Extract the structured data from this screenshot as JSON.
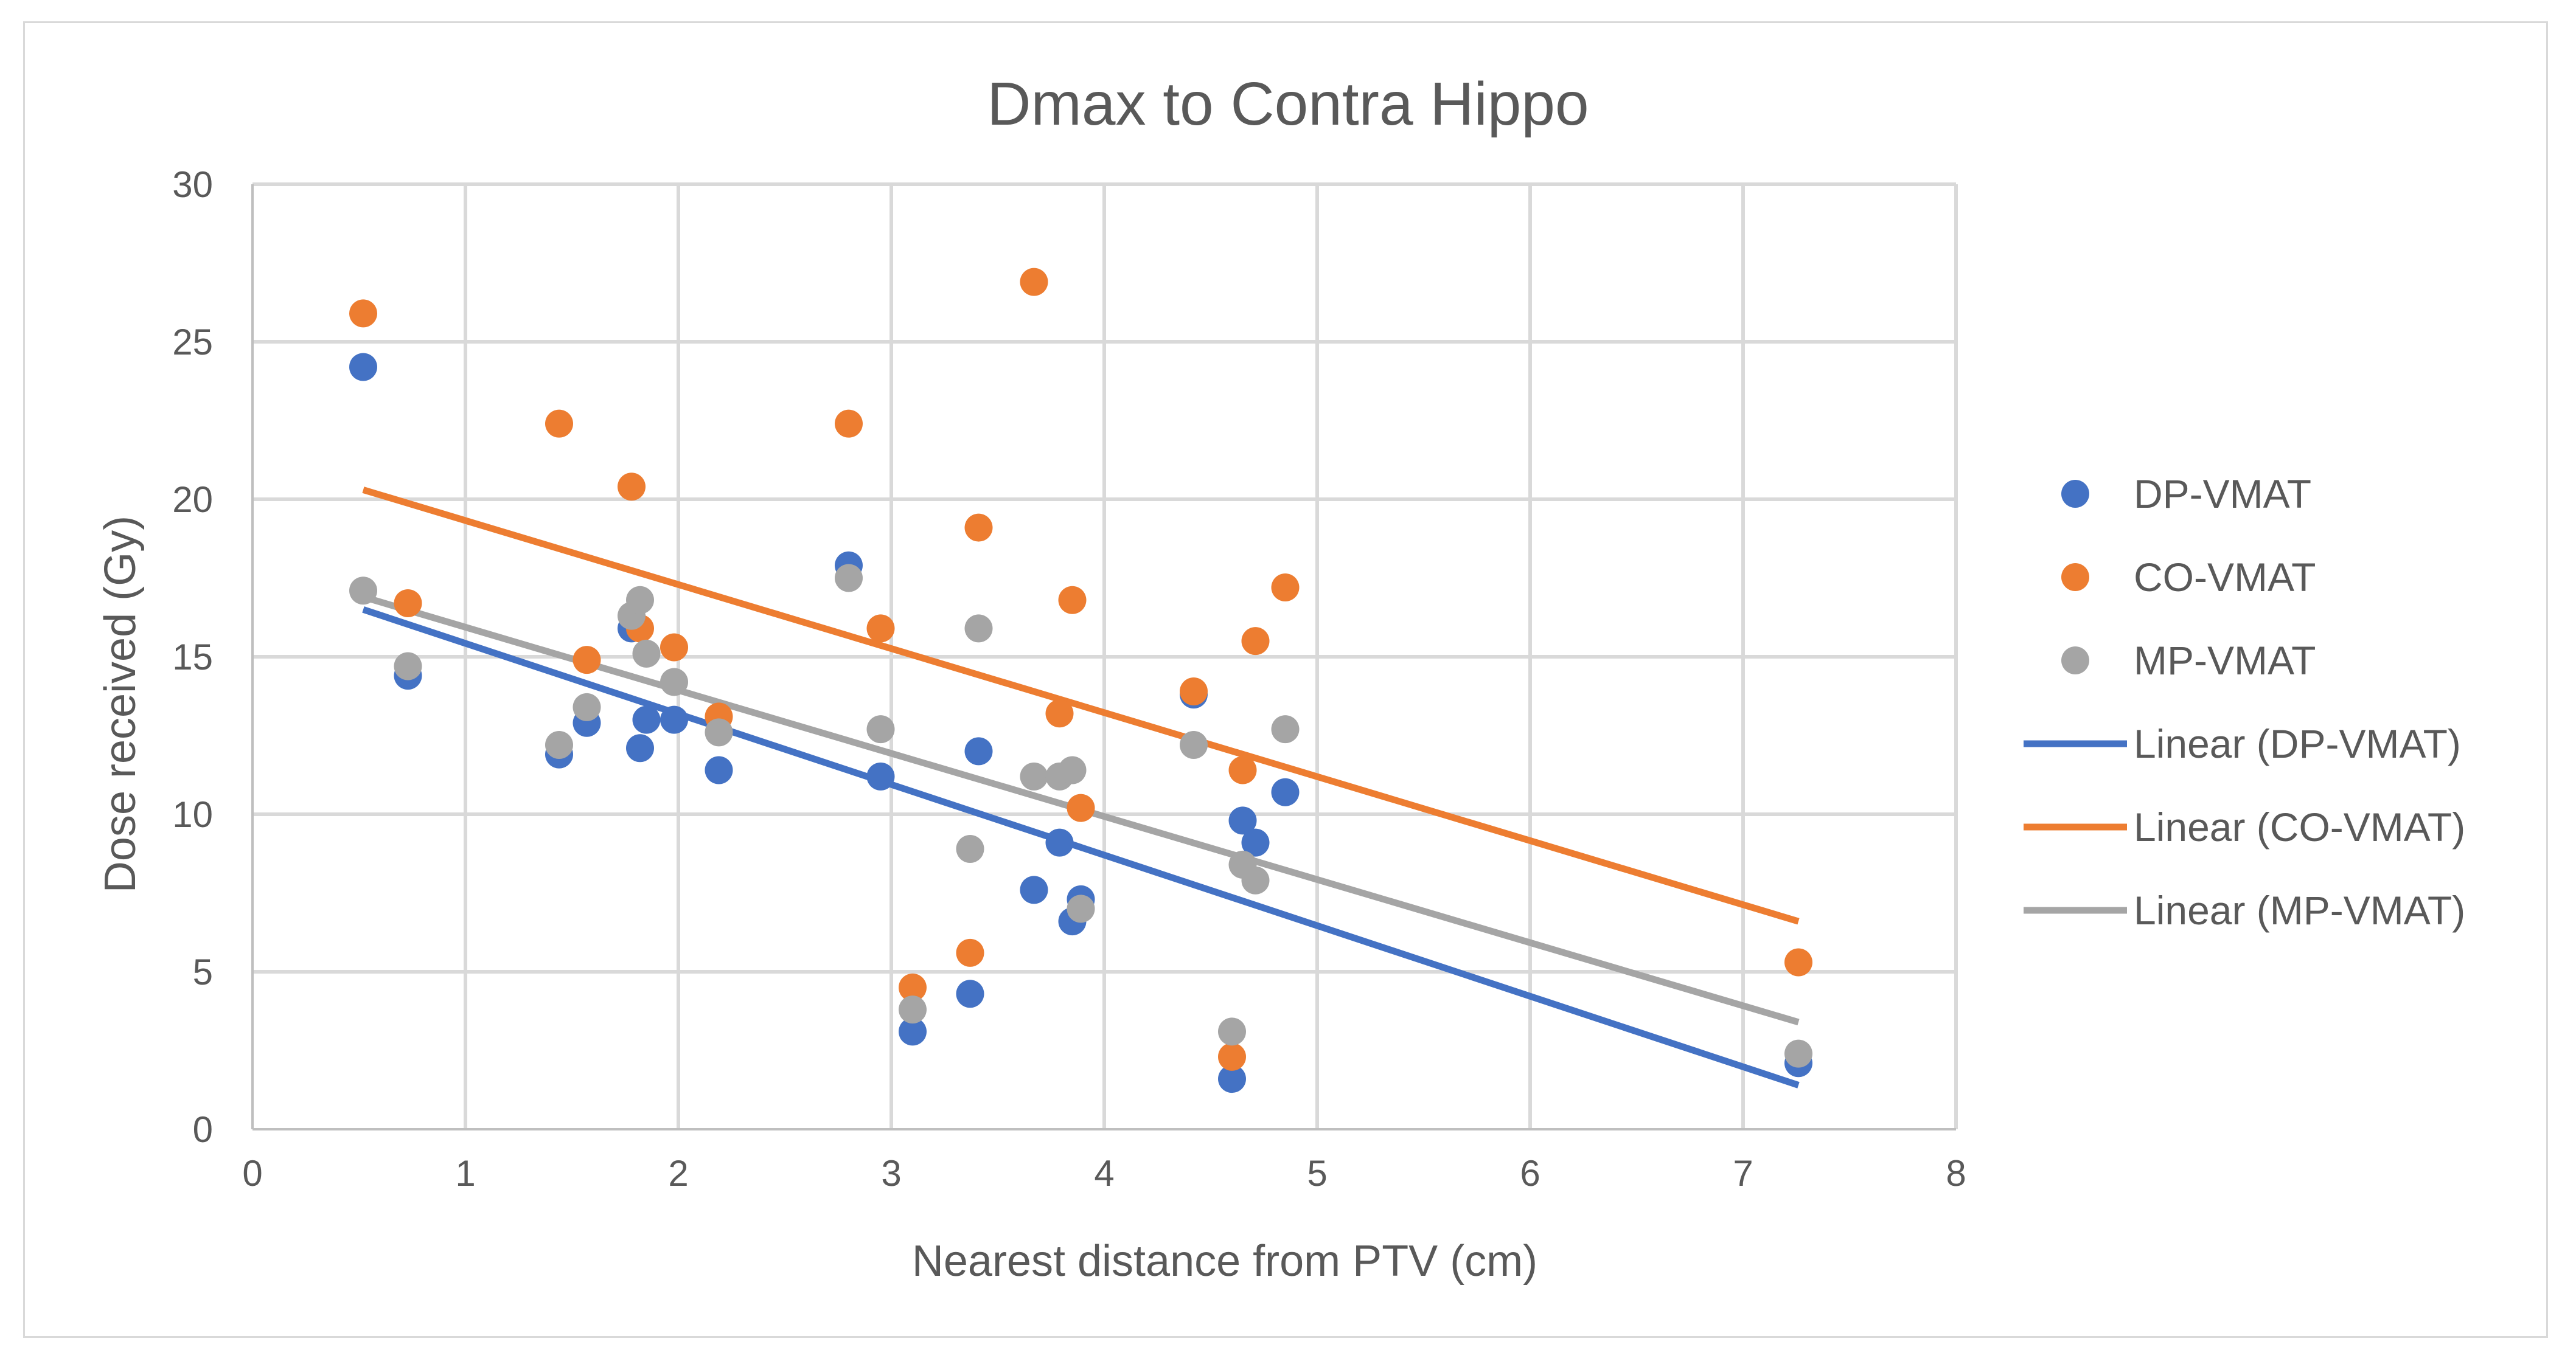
{
  "chart_data": {
    "type": "scatter",
    "title": "Dmax to Contra Hippo",
    "xlabel": "Nearest distance from PTV (cm)",
    "ylabel": "Dose received (Gy)",
    "xlim": [
      0,
      8
    ],
    "ylim": [
      0,
      30
    ],
    "x_ticks": [
      0,
      1,
      2,
      3,
      4,
      5,
      6,
      7,
      8
    ],
    "y_ticks": [
      0,
      5,
      10,
      15,
      20,
      25,
      30
    ],
    "grid": true,
    "legend_position": "right",
    "colors": {
      "DP-VMAT": "#4472c4",
      "CO-VMAT": "#ed7d31",
      "MP-VMAT": "#a5a5a5"
    },
    "series": [
      {
        "name": "DP-VMAT",
        "x": [
          0.52,
          0.73,
          1.44,
          1.57,
          1.78,
          1.82,
          1.85,
          1.98,
          2.19,
          2.8,
          2.95,
          3.1,
          3.37,
          3.41,
          3.67,
          3.79,
          3.85,
          3.89,
          4.42,
          4.6,
          4.65,
          4.71,
          4.85,
          7.26
        ],
        "y": [
          24.2,
          14.4,
          11.9,
          12.9,
          15.9,
          12.1,
          13.0,
          13.0,
          11.4,
          17.9,
          11.2,
          3.1,
          4.3,
          12.0,
          7.6,
          9.1,
          6.6,
          7.3,
          13.8,
          1.6,
          9.8,
          9.1,
          10.7,
          2.1
        ]
      },
      {
        "name": "CO-VMAT",
        "x": [
          0.52,
          0.73,
          1.44,
          1.57,
          1.78,
          1.82,
          1.98,
          2.19,
          2.8,
          2.95,
          3.1,
          3.37,
          3.41,
          3.67,
          3.79,
          3.85,
          3.89,
          4.42,
          4.6,
          4.65,
          4.71,
          4.85,
          7.26
        ],
        "y": [
          25.9,
          16.7,
          22.4,
          14.9,
          20.4,
          15.9,
          15.3,
          13.1,
          22.4,
          15.9,
          4.5,
          5.6,
          19.1,
          26.9,
          13.2,
          16.8,
          10.2,
          13.9,
          2.3,
          11.4,
          15.5,
          17.2,
          5.3
        ]
      },
      {
        "name": "MP-VMAT",
        "x": [
          0.52,
          0.73,
          1.44,
          1.57,
          1.78,
          1.82,
          1.85,
          1.98,
          2.19,
          2.8,
          2.95,
          3.1,
          3.37,
          3.41,
          3.67,
          3.79,
          3.85,
          3.89,
          4.42,
          4.6,
          4.65,
          4.71,
          4.85,
          7.26
        ],
        "y": [
          17.1,
          14.7,
          12.2,
          13.4,
          16.3,
          16.8,
          15.1,
          14.2,
          12.6,
          17.5,
          12.7,
          3.8,
          8.9,
          15.9,
          11.2,
          11.2,
          11.4,
          7.0,
          12.2,
          3.1,
          8.4,
          7.9,
          12.7,
          2.4
        ]
      }
    ],
    "trendlines": [
      {
        "name": "Linear (DP-VMAT)",
        "type": "linear",
        "x": [
          0.52,
          7.26
        ],
        "y": [
          16.5,
          1.4
        ]
      },
      {
        "name": "Linear (CO-VMAT)",
        "type": "linear",
        "x": [
          0.52,
          7.26
        ],
        "y": [
          20.3,
          6.6
        ]
      },
      {
        "name": "Linear (MP-VMAT)",
        "type": "linear",
        "x": [
          0.52,
          7.26
        ],
        "y": [
          16.9,
          3.4
        ]
      }
    ],
    "legend": [
      "DP-VMAT",
      "CO-VMAT",
      "MP-VMAT",
      "Linear (DP-VMAT)",
      "Linear (CO-VMAT)",
      "Linear (MP-VMAT)"
    ]
  }
}
